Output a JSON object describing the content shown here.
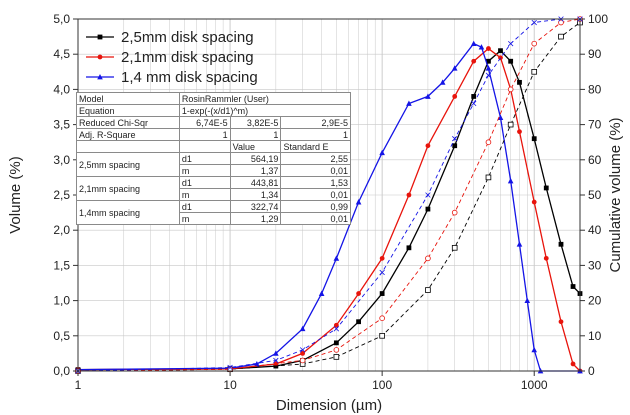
{
  "colors": {
    "black": "#000000",
    "red": "#e8140c",
    "blue": "#1414e6",
    "grid": "#c8c8c8"
  },
  "chart_data": {
    "type": "line",
    "xlabel": "Dimension (µm)",
    "ylabel_left": "Volume (%)",
    "ylabel_right": "Cumulative volume (%)",
    "x_scale": "log",
    "xlim": [
      1,
      2000
    ],
    "ylim_left": [
      0,
      5
    ],
    "ylim_right": [
      0,
      100
    ],
    "x_ticks": [
      1,
      10,
      100,
      1000
    ],
    "x_tick_labels": [
      "1",
      "10",
      "100",
      "1000"
    ],
    "y_left_ticks": [
      0,
      0.5,
      1,
      1.5,
      2,
      2.5,
      3,
      3.5,
      4,
      4.5,
      5
    ],
    "y_left_tick_labels": [
      "0,0",
      "0,5",
      "1,0",
      "1,5",
      "2,0",
      "2,5",
      "3,0",
      "3,5",
      "4,0",
      "4,5",
      "5,0"
    ],
    "y_right_ticks": [
      0,
      10,
      20,
      30,
      40,
      50,
      60,
      70,
      80,
      90,
      100
    ],
    "y_right_tick_labels": [
      "0",
      "10",
      "20",
      "30",
      "40",
      "50",
      "60",
      "70",
      "80",
      "90",
      "100"
    ],
    "grid": true,
    "legend_position": "top-left",
    "series": [
      {
        "name": "2,5mm disk spacing",
        "color": "#000000",
        "marker": "square",
        "x": [
          1,
          10,
          20,
          30,
          50,
          70,
          100,
          150,
          200,
          300,
          400,
          500,
          600,
          700,
          800,
          1000,
          1200,
          1500,
          1800,
          2000
        ],
        "y": [
          0.02,
          0.03,
          0.07,
          0.15,
          0.4,
          0.7,
          1.1,
          1.75,
          2.3,
          3.2,
          3.9,
          4.4,
          4.55,
          4.4,
          4.1,
          3.3,
          2.6,
          1.8,
          1.2,
          1.1
        ]
      },
      {
        "name": "2,1mm disk spacing",
        "color": "#e8140c",
        "marker": "circle",
        "x": [
          1,
          10,
          20,
          30,
          50,
          70,
          100,
          150,
          200,
          300,
          400,
          500,
          600,
          700,
          800,
          1000,
          1200,
          1500,
          1800,
          2000
        ],
        "y": [
          0.02,
          0.03,
          0.1,
          0.25,
          0.65,
          1.1,
          1.6,
          2.5,
          3.2,
          3.9,
          4.4,
          4.58,
          4.45,
          4.0,
          3.4,
          2.4,
          1.6,
          0.7,
          0.1,
          0.0
        ]
      },
      {
        "name": "1,4 mm disk spacing",
        "color": "#1414e6",
        "marker": "triangle",
        "x": [
          1,
          10,
          15,
          20,
          30,
          40,
          50,
          70,
          100,
          150,
          200,
          250,
          300,
          400,
          450,
          500,
          600,
          700,
          800,
          900,
          1000,
          1100,
          2000
        ],
        "y": [
          0.02,
          0.04,
          0.1,
          0.25,
          0.6,
          1.1,
          1.6,
          2.4,
          3.1,
          3.8,
          3.9,
          4.1,
          4.3,
          4.65,
          4.6,
          4.3,
          3.6,
          2.7,
          1.8,
          1.0,
          0.3,
          0.0,
          0.0
        ]
      },
      {
        "color": "#000000",
        "marker": "open-square",
        "axis": "right",
        "x": [
          1,
          10,
          30,
          50,
          100,
          200,
          300,
          500,
          700,
          1000,
          1500,
          2000
        ],
        "y": [
          0,
          0.5,
          2,
          4,
          10,
          23,
          35,
          55,
          70,
          85,
          95,
          99
        ]
      },
      {
        "color": "#e8140c",
        "marker": "open-circle",
        "axis": "right",
        "x": [
          1,
          10,
          30,
          50,
          100,
          200,
          300,
          500,
          700,
          1000,
          1500,
          2000
        ],
        "y": [
          0,
          0.5,
          3,
          6,
          15,
          32,
          45,
          65,
          80,
          93,
          99,
          100
        ]
      },
      {
        "color": "#1414e6",
        "marker": "x",
        "axis": "right",
        "x": [
          1,
          10,
          20,
          30,
          50,
          100,
          200,
          300,
          400,
          500,
          700,
          1000,
          1500,
          2000
        ],
        "y": [
          0,
          1,
          3,
          6,
          12,
          28,
          50,
          66,
          76,
          84,
          93,
          99,
          100,
          100
        ]
      }
    ]
  },
  "table": {
    "rows": [
      [
        "Model",
        "RosinRammler (User)"
      ],
      [
        "Equation",
        "1-exp(-(x/d1)^m)"
      ],
      [
        "Reduced Chi-Sqr",
        "6,74E-5",
        "3,82E-5",
        "2,9E-5"
      ],
      [
        "Adj. R-Square",
        "1",
        "1",
        "1"
      ]
    ],
    "col_headers": [
      "Value",
      "Standard E"
    ],
    "groups": [
      {
        "label": "2,5mm spacing",
        "rows": [
          [
            "d1",
            "564,19",
            "2,55"
          ],
          [
            "m",
            "1,37",
            "0,01"
          ]
        ]
      },
      {
        "label": "2,1mm spacing",
        "rows": [
          [
            "d1",
            "443,81",
            "1,53"
          ],
          [
            "m",
            "1,34",
            "0,01"
          ]
        ]
      },
      {
        "label": "1,4mm spacing",
        "rows": [
          [
            "d1",
            "322,74",
            "0,99"
          ],
          [
            "m",
            "1,29",
            "0,01"
          ]
        ]
      }
    ]
  }
}
